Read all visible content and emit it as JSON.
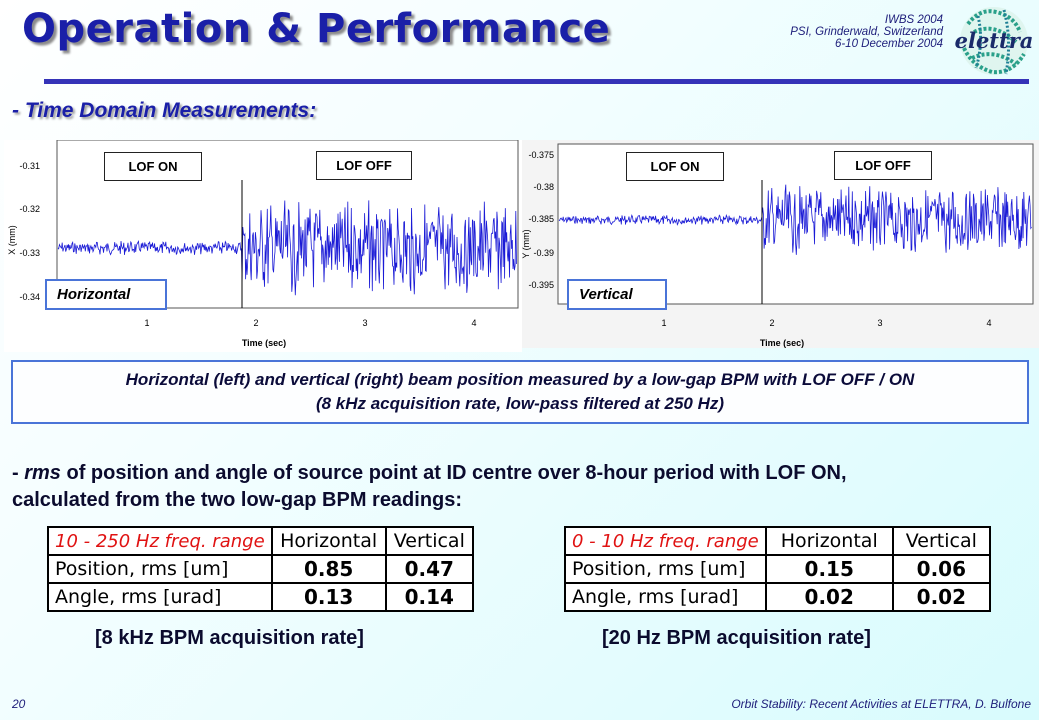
{
  "title": "Operation & Performance",
  "conference": {
    "name": "IWBS 2004",
    "location": "PSI, Grinderwald, Switzerland",
    "dates": "6-10 December 2004"
  },
  "logo_text": "elettra",
  "section_heading": "- Time Domain Measurements:",
  "plots": [
    {
      "name": "Horizontal",
      "ylabel": "X (mm)",
      "xlabel": "Time (sec)",
      "yticks": [
        "-0.31",
        "-0.32",
        "-0.33",
        "-0.34"
      ],
      "xticks": [
        "1",
        "2",
        "3",
        "4"
      ],
      "lof_on_label": "LOF ON",
      "lof_off_label": "LOF OFF"
    },
    {
      "name": "Vertical",
      "ylabel": "Y (mm)",
      "xlabel": "Time (sec)",
      "yticks": [
        "-0.375",
        "-0.38",
        "-0.385",
        "-0.39",
        "-0.395"
      ],
      "xticks": [
        "1",
        "2",
        "3",
        "4"
      ],
      "lof_on_label": "LOF ON",
      "lof_off_label": "LOF OFF"
    }
  ],
  "caption": {
    "line1": "Horizontal (left) and vertical (right) beam position measured by a low-gap BPM with LOF OFF / ON",
    "line2": "(8 kHz acquisition rate, low-pass filtered at 250 Hz)"
  },
  "rms_text": {
    "prefix": "- ",
    "emph": "rms",
    "rest": " of position and angle of source point at ID centre over 8-hour period with LOF ON,",
    "line2": "calculated from the two low-gap BPM readings:"
  },
  "tables": [
    {
      "range": "10 - 250 Hz freq. range",
      "col1": "Horizontal",
      "col2": "Vertical",
      "rows": [
        {
          "label": "Position, rms [um]",
          "h": "0.85",
          "v": "0.47"
        },
        {
          "label": "Angle, rms [urad]",
          "h": "0.13",
          "v": "0.14"
        }
      ],
      "rate": "[8 kHz BPM acquisition rate]"
    },
    {
      "range": "0 - 10 Hz freq. range",
      "col1": "Horizontal",
      "col2": "Vertical",
      "rows": [
        {
          "label": "Position, rms [um]",
          "h": "0.15",
          "v": "0.06"
        },
        {
          "label": "Angle, rms [urad]",
          "h": "0.02",
          "v": "0.02"
        }
      ],
      "rate": "[20 Hz BPM acquisition rate]"
    }
  ],
  "page_number": "20",
  "footer": "Orbit Stability: Recent Activities at ELETTRA, D. Bulfone",
  "colors": {
    "title": "#1a1fa8",
    "signal": "#1a1ad6",
    "frame": "#4a74d8",
    "range_text": "#e01212"
  }
}
